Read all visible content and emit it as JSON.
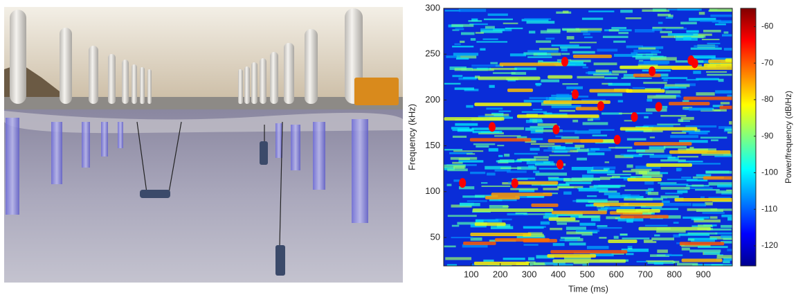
{
  "chart_data": {
    "type": "spectrogram",
    "xlabel": "Time (ms)",
    "ylabel": "Frequency (kHz)",
    "colorbar_label": "Power/frequency (dB/Hz)",
    "xlim": [
      5,
      1000
    ],
    "xticks": [
      100,
      200,
      300,
      400,
      500,
      600,
      700,
      800,
      900
    ],
    "ylim": [
      19,
      300
    ],
    "yticks": [
      50,
      100,
      150,
      200,
      250,
      300
    ],
    "clim": [
      -125.5,
      -55
    ],
    "cticks": [
      -60,
      -70,
      -80,
      -90,
      -100,
      -110,
      -120
    ],
    "colormap": "jet"
  }
}
